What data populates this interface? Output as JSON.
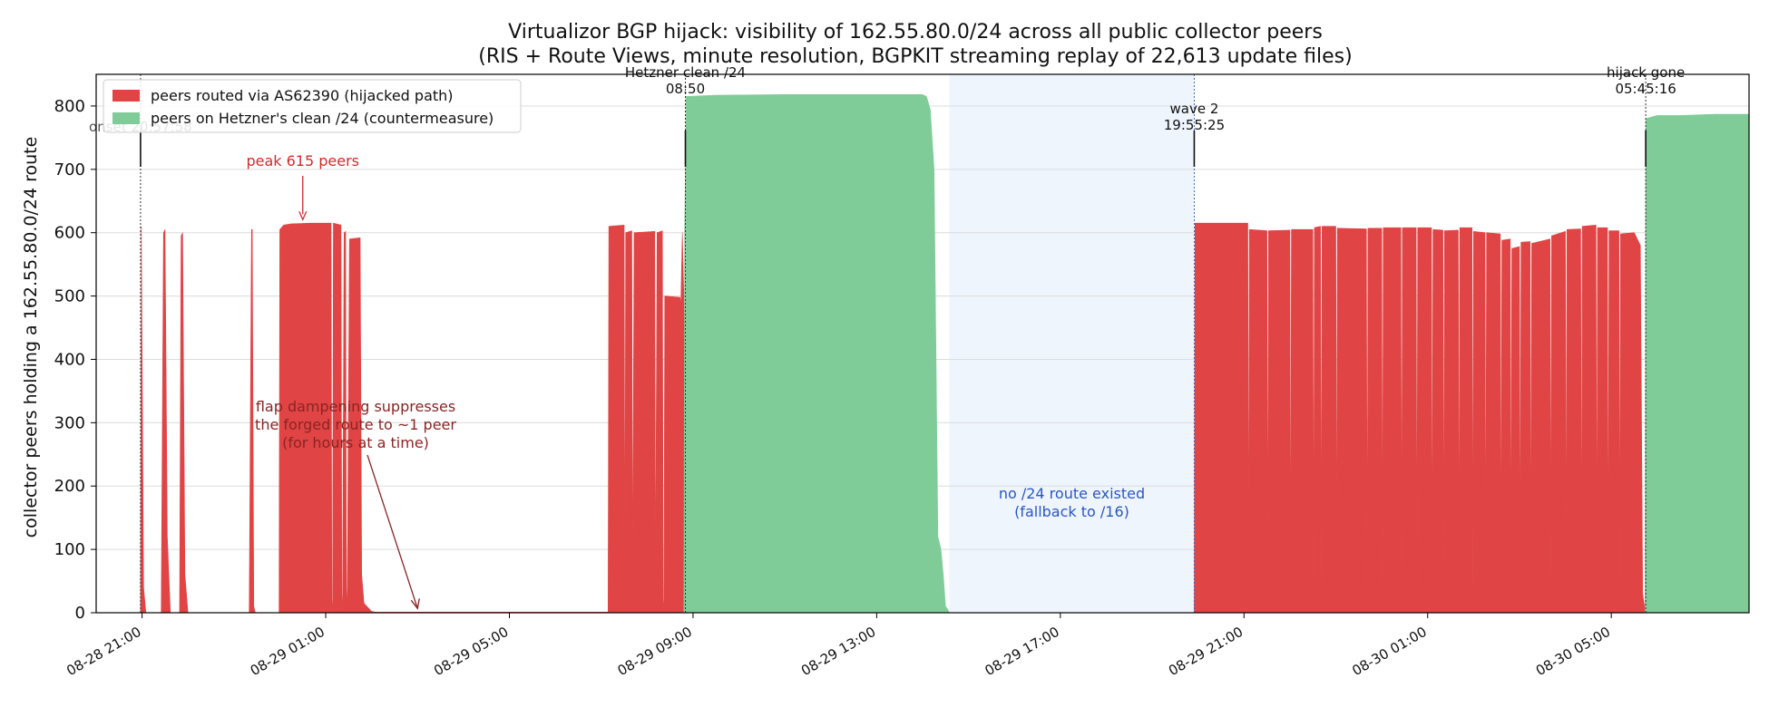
{
  "colors": {
    "hijack": "#e04444",
    "clean": "#80cc99",
    "gap_band": "#eef5fd",
    "gap_text": "#2b55c8",
    "peak_text": "#d42a2a",
    "dampen_text": "#8b2424"
  },
  "chart_data": {
    "type": "area",
    "title": "Virtualizor BGP hijack: visibility of 162.55.80.0/24 across all public collector peers",
    "subtitle": "(RIS + Route Views, minute resolution, BGPKIT streaming replay of 22,613 update files)",
    "xlabel": "",
    "ylabel": "collector peers holding a 162.55.80.0/24 route",
    "x_range": [
      "2025-08-28T20:00",
      "2025-08-30T08:00"
    ],
    "y_range": [
      0,
      850
    ],
    "y_ticks": [
      0,
      100,
      200,
      300,
      400,
      500,
      600,
      700,
      800
    ],
    "x_ticks": [
      {
        "t": "2025-08-28T21:00",
        "label": "08-28 21:00"
      },
      {
        "t": "2025-08-29T01:00",
        "label": "08-29 01:00"
      },
      {
        "t": "2025-08-29T05:00",
        "label": "08-29 05:00"
      },
      {
        "t": "2025-08-29T09:00",
        "label": "08-29 09:00"
      },
      {
        "t": "2025-08-29T13:00",
        "label": "08-29 13:00"
      },
      {
        "t": "2025-08-29T17:00",
        "label": "08-29 17:00"
      },
      {
        "t": "2025-08-29T21:00",
        "label": "08-29 21:00"
      },
      {
        "t": "2025-08-30T01:00",
        "label": "08-30 01:00"
      },
      {
        "t": "2025-08-30T05:00",
        "label": "08-30 05:00"
      }
    ],
    "grid": "horizontal",
    "legend": "top-left",
    "series": [
      {
        "name": "peers routed via AS62390 (hijacked path)",
        "color": "#e04444",
        "points": [
          [
            "2025-08-28T20:58",
            0
          ],
          [
            "2025-08-28T20:59",
            610
          ],
          [
            "2025-08-28T21:00",
            420
          ],
          [
            "2025-08-28T21:02",
            40
          ],
          [
            "2025-08-28T21:05",
            0
          ],
          [
            "2025-08-28T21:25",
            0
          ],
          [
            "2025-08-28T21:28",
            600
          ],
          [
            "2025-08-28T21:30",
            605
          ],
          [
            "2025-08-28T21:33",
            120
          ],
          [
            "2025-08-28T21:37",
            0
          ],
          [
            "2025-08-28T21:49",
            0
          ],
          [
            "2025-08-28T21:51",
            595
          ],
          [
            "2025-08-28T21:53",
            600
          ],
          [
            "2025-08-28T21:56",
            60
          ],
          [
            "2025-08-28T22:00",
            0
          ],
          [
            "2025-08-28T23:20",
            0
          ],
          [
            "2025-08-28T23:23",
            605
          ],
          [
            "2025-08-28T23:24",
            605
          ],
          [
            "2025-08-28T23:26",
            10
          ],
          [
            "2025-08-28T23:28",
            0
          ],
          [
            "2025-08-28T23:59",
            0
          ],
          [
            "2025-08-29T00:00",
            605
          ],
          [
            "2025-08-29T00:05",
            612
          ],
          [
            "2025-08-29T00:15",
            614
          ],
          [
            "2025-08-29T00:40",
            615
          ],
          [
            "2025-08-29T01:07",
            615
          ],
          [
            "2025-08-29T01:08",
            20
          ],
          [
            "2025-08-29T01:09",
            0
          ],
          [
            "2025-08-29T01:10",
            615
          ],
          [
            "2025-08-29T01:20",
            612
          ],
          [
            "2025-08-29T01:21",
            30
          ],
          [
            "2025-08-29T01:22",
            0
          ],
          [
            "2025-08-29T01:24",
            600
          ],
          [
            "2025-08-29T01:26",
            602
          ],
          [
            "2025-08-29T01:27",
            40
          ],
          [
            "2025-08-29T01:28",
            0
          ],
          [
            "2025-08-29T01:31",
            590
          ],
          [
            "2025-08-29T01:45",
            592
          ],
          [
            "2025-08-29T01:47",
            60
          ],
          [
            "2025-08-29T01:50",
            15
          ],
          [
            "2025-08-29T02:00",
            2
          ],
          [
            "2025-08-29T02:05",
            1
          ],
          [
            "2025-08-29T07:09",
            1
          ],
          [
            "2025-08-29T07:10",
            610
          ],
          [
            "2025-08-29T07:30",
            612
          ],
          [
            "2025-08-29T07:31",
            20
          ],
          [
            "2025-08-29T07:32",
            600
          ],
          [
            "2025-08-29T07:40",
            603
          ],
          [
            "2025-08-29T07:41",
            40
          ],
          [
            "2025-08-29T07:43",
            600
          ],
          [
            "2025-08-29T08:10",
            602
          ],
          [
            "2025-08-29T08:11",
            40
          ],
          [
            "2025-08-29T08:13",
            600
          ],
          [
            "2025-08-29T08:20",
            603
          ],
          [
            "2025-08-29T08:21",
            20
          ],
          [
            "2025-08-29T08:22",
            0
          ],
          [
            "2025-08-29T08:23",
            500
          ],
          [
            "2025-08-29T08:43",
            498
          ],
          [
            "2025-08-29T08:44",
            485
          ],
          [
            "2025-08-29T08:46",
            600
          ],
          [
            "2025-08-29T08:48",
            500
          ],
          [
            "2025-08-29T08:50",
            300
          ],
          [
            "2025-08-29T08:51",
            0
          ],
          [
            "2025-08-29T19:55",
            0
          ],
          [
            "2025-08-29T19:56",
            615
          ],
          [
            "2025-08-29T21:05",
            615
          ],
          [
            "2025-08-29T21:06",
            40
          ],
          [
            "2025-08-29T21:07",
            605
          ],
          [
            "2025-08-29T21:30",
            603
          ],
          [
            "2025-08-29T21:31",
            30
          ],
          [
            "2025-08-29T21:32",
            603
          ],
          [
            "2025-08-29T22:00",
            604
          ],
          [
            "2025-08-29T22:01",
            20
          ],
          [
            "2025-08-29T22:02",
            605
          ],
          [
            "2025-08-29T22:30",
            605
          ],
          [
            "2025-08-29T22:31",
            25
          ],
          [
            "2025-08-29T22:32",
            608
          ],
          [
            "2025-08-29T22:40",
            610
          ],
          [
            "2025-08-29T22:41",
            20
          ],
          [
            "2025-08-29T22:42",
            610
          ],
          [
            "2025-08-29T23:00",
            610
          ],
          [
            "2025-08-29T23:01",
            30
          ],
          [
            "2025-08-29T23:02",
            607
          ],
          [
            "2025-08-29T23:40",
            606
          ],
          [
            "2025-08-29T23:41",
            20
          ],
          [
            "2025-08-29T23:42",
            607
          ],
          [
            "2025-08-30T00:00",
            607
          ],
          [
            "2025-08-30T00:01",
            20
          ],
          [
            "2025-08-30T00:02",
            608
          ],
          [
            "2025-08-30T00:25",
            608
          ],
          [
            "2025-08-30T00:26",
            25
          ],
          [
            "2025-08-30T00:27",
            608
          ],
          [
            "2025-08-30T00:45",
            608
          ],
          [
            "2025-08-30T00:46",
            20
          ],
          [
            "2025-08-30T00:47",
            608
          ],
          [
            "2025-08-30T01:05",
            608
          ],
          [
            "2025-08-30T01:06",
            20
          ],
          [
            "2025-08-30T01:07",
            605
          ],
          [
            "2025-08-30T01:20",
            604
          ],
          [
            "2025-08-30T01:21",
            25
          ],
          [
            "2025-08-30T01:22",
            603
          ],
          [
            "2025-08-30T01:40",
            604
          ],
          [
            "2025-08-30T01:41",
            20
          ],
          [
            "2025-08-30T01:42",
            608
          ],
          [
            "2025-08-30T01:58",
            608
          ],
          [
            "2025-08-30T01:59",
            20
          ],
          [
            "2025-08-30T02:00",
            602
          ],
          [
            "2025-08-30T02:15",
            600
          ],
          [
            "2025-08-30T02:16",
            30
          ],
          [
            "2025-08-30T02:17",
            600
          ],
          [
            "2025-08-30T02:35",
            598
          ],
          [
            "2025-08-30T02:36",
            20
          ],
          [
            "2025-08-30T02:37",
            588
          ],
          [
            "2025-08-30T02:48",
            590
          ],
          [
            "2025-08-30T02:49",
            25
          ],
          [
            "2025-08-30T02:50",
            575
          ],
          [
            "2025-08-30T03:00",
            578
          ],
          [
            "2025-08-30T03:01",
            20
          ],
          [
            "2025-08-30T03:02",
            585
          ],
          [
            "2025-08-30T03:14",
            586
          ],
          [
            "2025-08-30T03:15",
            20
          ],
          [
            "2025-08-30T03:16",
            583
          ],
          [
            "2025-08-30T03:40",
            590
          ],
          [
            "2025-08-30T03:41",
            25
          ],
          [
            "2025-08-30T03:42",
            595
          ],
          [
            "2025-08-30T04:00",
            602
          ],
          [
            "2025-08-30T04:01",
            20
          ],
          [
            "2025-08-30T04:02",
            605
          ],
          [
            "2025-08-30T04:20",
            606
          ],
          [
            "2025-08-30T04:21",
            30
          ],
          [
            "2025-08-30T04:22",
            610
          ],
          [
            "2025-08-30T04:40",
            612
          ],
          [
            "2025-08-30T04:41",
            25
          ],
          [
            "2025-08-30T04:42",
            608
          ],
          [
            "2025-08-30T04:55",
            608
          ],
          [
            "2025-08-30T04:56",
            20
          ],
          [
            "2025-08-30T04:57",
            603
          ],
          [
            "2025-08-30T05:10",
            603
          ],
          [
            "2025-08-30T05:11",
            20
          ],
          [
            "2025-08-30T05:12",
            598
          ],
          [
            "2025-08-30T05:30",
            600
          ],
          [
            "2025-08-30T05:38",
            580
          ],
          [
            "2025-08-30T05:41",
            30
          ],
          [
            "2025-08-30T05:44",
            5
          ],
          [
            "2025-08-30T05:45",
            0
          ],
          [
            "2025-08-30T08:00",
            0
          ]
        ]
      },
      {
        "name": "peers on Hetzner's clean /24 (countermeasure)",
        "color": "#80cc99",
        "points": [
          [
            "2025-08-29T08:48",
            0
          ],
          [
            "2025-08-29T08:49",
            600
          ],
          [
            "2025-08-29T08:50",
            700
          ],
          [
            "2025-08-29T08:51",
            815
          ],
          [
            "2025-08-29T09:30",
            817
          ],
          [
            "2025-08-29T11:00",
            818
          ],
          [
            "2025-08-29T13:00",
            818
          ],
          [
            "2025-08-29T14:00",
            818
          ],
          [
            "2025-08-29T14:05",
            815
          ],
          [
            "2025-08-29T14:10",
            795
          ],
          [
            "2025-08-29T14:15",
            700
          ],
          [
            "2025-08-29T14:20",
            120
          ],
          [
            "2025-08-29T14:24",
            100
          ],
          [
            "2025-08-29T14:27",
            60
          ],
          [
            "2025-08-29T14:30",
            10
          ],
          [
            "2025-08-29T14:33",
            5
          ],
          [
            "2025-08-29T14:35",
            0
          ],
          [
            "2025-08-30T05:44",
            0
          ],
          [
            "2025-08-30T05:45",
            780
          ],
          [
            "2025-08-30T06:00",
            785
          ],
          [
            "2025-08-30T06:30",
            785
          ],
          [
            "2025-08-30T07:15",
            787
          ],
          [
            "2025-08-30T08:00",
            787
          ]
        ]
      }
    ],
    "gap_band": {
      "start": "2025-08-29T14:35",
      "end": "2025-08-29T19:55",
      "label": [
        "no /24 route existed",
        "(fallback to /16)"
      ]
    },
    "markers": [
      {
        "t": "2025-08-28T20:58",
        "label": [
          "onset 20:57:58"
        ]
      },
      {
        "t": "2025-08-29T08:50",
        "label": [
          "Hetzner clean /24",
          "08:50"
        ]
      },
      {
        "t": "2025-08-29T19:55",
        "label": [
          "wave 2",
          "19:55:25"
        ]
      },
      {
        "t": "2025-08-30T05:45",
        "label": [
          "hijack gone",
          "05:45:16"
        ]
      }
    ],
    "annotations": [
      {
        "text": [
          "peak 615 peers"
        ],
        "target": [
          "2025-08-29T00:30",
          615
        ]
      },
      {
        "text": [
          "flap dampening suppresses",
          "the forged route to ~1 peer",
          "(for hours at a time)"
        ],
        "target": [
          "2025-08-29T03:00",
          1
        ]
      }
    ]
  }
}
